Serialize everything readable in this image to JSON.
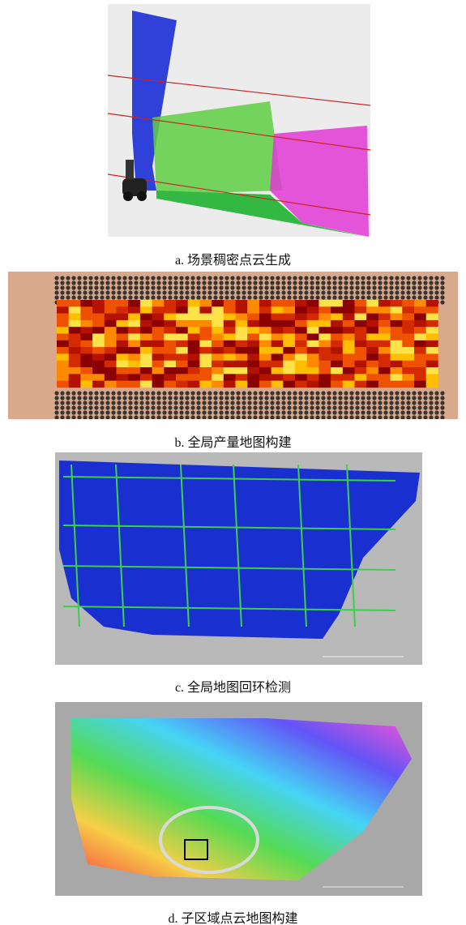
{
  "figure": {
    "panels": [
      {
        "caption": "a. 场景稠密点云生成"
      },
      {
        "caption": "b. 全局产量地图构建"
      },
      {
        "caption": "c. 全局地图回环检测"
      },
      {
        "caption": "d. 子区域点云地图构建"
      }
    ]
  }
}
